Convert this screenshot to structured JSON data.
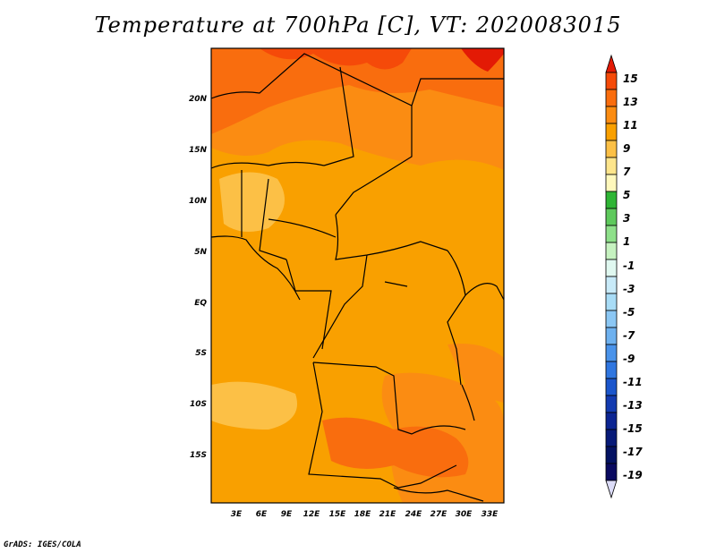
{
  "title": "Temperature at 700hPa [C], VT: 2020083015",
  "credit": "GrADS: IGES/COLA",
  "map": {
    "lat_labels": [
      "20N",
      "15N",
      "10N",
      "5N",
      "EQ",
      "5S",
      "10S",
      "15S"
    ],
    "lon_labels": [
      "3E",
      "6E",
      "9E",
      "12E",
      "15E",
      "18E",
      "21E",
      "24E",
      "27E",
      "30E",
      "33E"
    ],
    "background_color": "#f9a000"
  },
  "colorbar": {
    "labels": [
      "15",
      "13",
      "11",
      "9",
      "7",
      "5",
      "3",
      "1",
      "-1",
      "-3",
      "-5",
      "-7",
      "-9",
      "-11",
      "-13",
      "-15",
      "-17",
      "-19"
    ],
    "colors": [
      "#e31a05",
      "#f54a09",
      "#f96d0e",
      "#fb8c12",
      "#f9a000",
      "#fcc046",
      "#fde58c",
      "#fff8bc",
      "#2fb535",
      "#5ec95c",
      "#8ee08a",
      "#c6f2c0",
      "#e0f8f0",
      "#c8eaf8",
      "#a8dcf6",
      "#8bc7f4",
      "#6eb1ef",
      "#4a93ea",
      "#2f76e0",
      "#1b56cc",
      "#133bb0",
      "#0c2592",
      "#071a78",
      "#041262",
      "#0a0a60",
      "#dcdcf8"
    ]
  }
}
